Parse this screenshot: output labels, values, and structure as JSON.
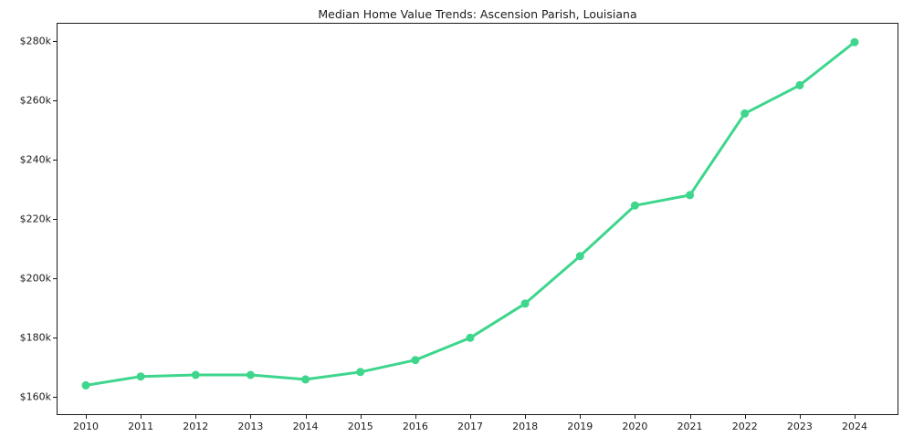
{
  "chart_data": {
    "type": "line",
    "title": "Median Home Value Trends: Ascension Parish, Louisiana",
    "xlabel": "",
    "ylabel": "",
    "categories": [
      "2010",
      "2011",
      "2012",
      "2013",
      "2014",
      "2015",
      "2016",
      "2017",
      "2018",
      "2019",
      "2020",
      "2021",
      "2022",
      "2023",
      "2024"
    ],
    "values": [
      164000,
      167000,
      167500,
      167500,
      166000,
      168500,
      172500,
      180000,
      191500,
      207500,
      224500,
      228000,
      255500,
      265000,
      279500
    ],
    "ylim": [
      154000,
      286000
    ],
    "y_ticks": [
      {
        "label": "$160k",
        "value": 160000
      },
      {
        "label": "$180k",
        "value": 180000
      },
      {
        "label": "$200k",
        "value": 200000
      },
      {
        "label": "$220k",
        "value": 220000
      },
      {
        "label": "$240k",
        "value": 240000
      },
      {
        "label": "$260k",
        "value": 260000
      },
      {
        "label": "$280k",
        "value": 280000
      }
    ],
    "grid": false,
    "legend": false,
    "marker": "circle",
    "line_color": "#3dd68c",
    "border_color": "#1a1a1a",
    "background": "#ffffff"
  }
}
